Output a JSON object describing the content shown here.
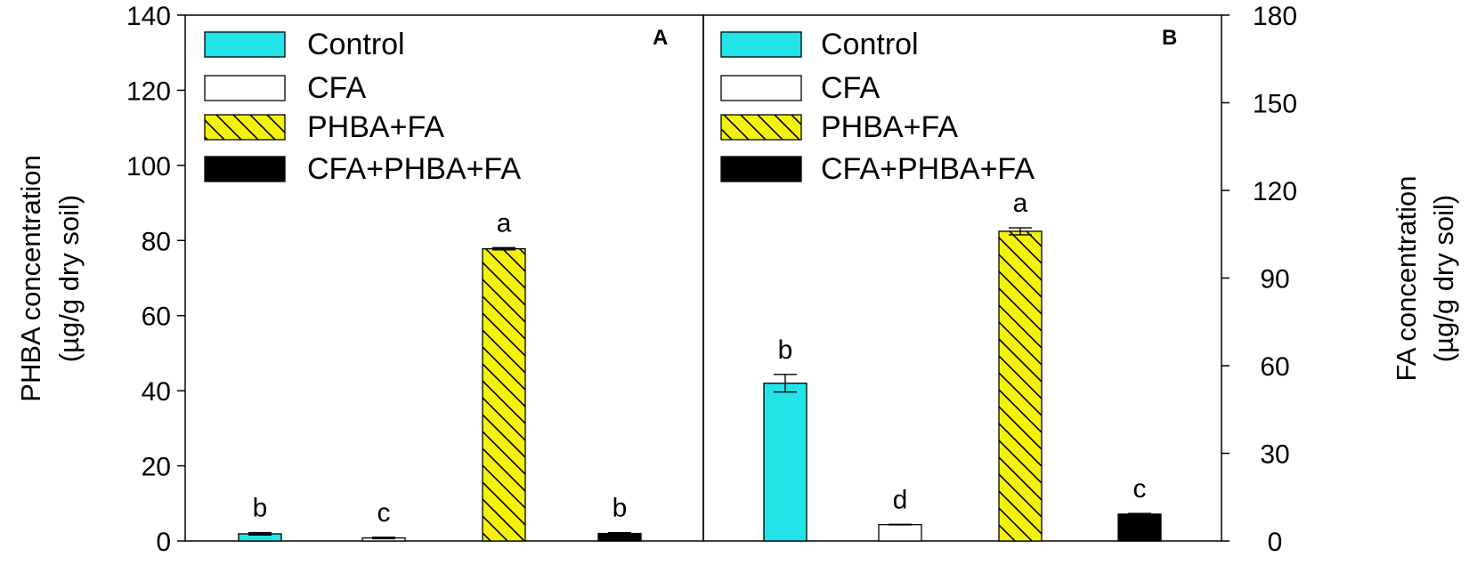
{
  "colors": {
    "control": "#22e3e8",
    "cfa": "#ffffff",
    "phba_fa": "#f5f20a",
    "cfa_phba_fa": "#000000",
    "axis": "#000000"
  },
  "legend": {
    "entries": [
      {
        "key": "control",
        "label": "Control",
        "pattern": "solid"
      },
      {
        "key": "cfa",
        "label": "CFA",
        "pattern": "solid"
      },
      {
        "key": "phba_fa",
        "label": "PHBA+FA",
        "pattern": "hatch"
      },
      {
        "key": "cfa_phba_fa",
        "label": "CFA+PHBA+FA",
        "pattern": "solid"
      }
    ]
  },
  "chart_data": [
    {
      "type": "bar",
      "panel": "A",
      "y_axis_side": "left",
      "ylabel_line1": "PHBA concentration",
      "ylabel_line2": "(µg/g dry soil)",
      "ylim": [
        0,
        140
      ],
      "yticks": [
        0,
        20,
        40,
        60,
        80,
        100,
        120,
        140
      ],
      "categories": [
        "Control",
        "CFA",
        "PHBA+FA",
        "CFA+PHBA+FA"
      ],
      "values": [
        1.9,
        0.8,
        77.8,
        2.0
      ],
      "errors": [
        0.3,
        0.2,
        0.3,
        0.2
      ],
      "significance": [
        "b",
        "c",
        "a",
        "b"
      ],
      "grid": false
    },
    {
      "type": "bar",
      "panel": "B",
      "y_axis_side": "right",
      "ylabel_line1": "FA concentration",
      "ylabel_line2": "(µg/g dry soil)",
      "ylim": [
        0,
        180
      ],
      "yticks": [
        0,
        30,
        60,
        90,
        120,
        150,
        180
      ],
      "categories": [
        "Control",
        "CFA",
        "PHBA+FA",
        "CFA+PHBA+FA"
      ],
      "values": [
        54.0,
        5.6,
        106.0,
        9.2
      ],
      "errors": [
        3.0,
        0.1,
        1.2,
        0.2
      ],
      "significance": [
        "b",
        "d",
        "a",
        "c"
      ],
      "grid": false
    }
  ]
}
